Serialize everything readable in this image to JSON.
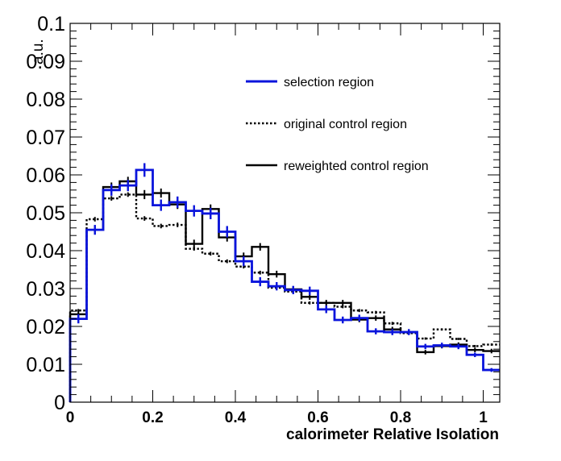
{
  "chart_data": {
    "type": "line",
    "title": "",
    "xlabel": "calorimeter Relative Isolation",
    "ylabel": "a.u.",
    "xlim": [
      0,
      1.04
    ],
    "ylim": [
      0,
      0.1
    ],
    "x_ticks": [
      "0",
      "0.2",
      "0.4",
      "0.6",
      "0.8",
      "1"
    ],
    "y_ticks": [
      "0",
      "0.01",
      "0.02",
      "0.03",
      "0.04",
      "0.05",
      "0.06",
      "0.07",
      "0.08",
      "0.09",
      "0.1"
    ],
    "bin_edges": [
      0,
      0.04,
      0.08,
      0.12,
      0.16,
      0.2,
      0.24,
      0.28,
      0.32,
      0.36,
      0.4,
      0.44,
      0.48,
      0.52,
      0.56,
      0.6,
      0.64,
      0.68,
      0.72,
      0.76,
      0.8,
      0.84,
      0.88,
      0.92,
      0.96,
      1.0,
      1.04
    ],
    "legend_position": "top-right",
    "grid": false,
    "series": [
      {
        "name": "selection region",
        "style": "solid",
        "color": "#0a14dc",
        "values": [
          0.022,
          0.0455,
          0.056,
          0.0572,
          0.0613,
          0.052,
          0.0528,
          0.0505,
          0.0498,
          0.045,
          0.0372,
          0.0318,
          0.0306,
          0.0296,
          0.0294,
          0.0245,
          0.0217,
          0.0222,
          0.0187,
          0.0185,
          0.0185,
          0.0147,
          0.015,
          0.0147,
          0.0125,
          0.0085
        ],
        "errors": [
          0.0012,
          0.0013,
          0.0015,
          0.0015,
          0.0018,
          0.0015,
          0.0015,
          0.0015,
          0.0015,
          0.0015,
          0.0013,
          0.0012,
          0.0011,
          0.0011,
          0.0011,
          0.001,
          0.0009,
          0.0009,
          0.0008,
          0.0008,
          0.0008,
          0.0007,
          0.0007,
          0.0007,
          0.0006,
          0.0005
        ]
      },
      {
        "name": "original control region",
        "style": "dotted",
        "color": "#000000",
        "values": [
          0.0242,
          0.0483,
          0.0538,
          0.0548,
          0.0485,
          0.0465,
          0.0468,
          0.0405,
          0.0392,
          0.0372,
          0.0358,
          0.0342,
          0.0302,
          0.0292,
          0.0262,
          0.0262,
          0.0252,
          0.0242,
          0.0237,
          0.0208,
          0.0182,
          0.0168,
          0.0192,
          0.0167,
          0.0148,
          0.0152
        ],
        "errors": [
          0.0004,
          0.0006,
          0.0006,
          0.0006,
          0.0006,
          0.0006,
          0.0006,
          0.0005,
          0.0005,
          0.0005,
          0.0005,
          0.0005,
          0.0004,
          0.0004,
          0.0004,
          0.0004,
          0.0004,
          0.0004,
          0.0004,
          0.0004,
          0.0003,
          0.0003,
          0.0003,
          0.0003,
          0.0003,
          0.0003
        ]
      },
      {
        "name": "reweighted control region",
        "style": "solid",
        "color": "#000000",
        "values": [
          0.0232,
          0.0455,
          0.0568,
          0.0583,
          0.0548,
          0.0552,
          0.0522,
          0.0418,
          0.051,
          0.0435,
          0.0385,
          0.041,
          0.0338,
          0.0298,
          0.0278,
          0.0262,
          0.0262,
          0.0218,
          0.0222,
          0.0192,
          0.0185,
          0.0132,
          0.0148,
          0.0152,
          0.0138,
          0.0135
        ],
        "errors": [
          0.0008,
          0.0011,
          0.0012,
          0.0012,
          0.0012,
          0.0012,
          0.0012,
          0.0011,
          0.0012,
          0.0011,
          0.001,
          0.001,
          0.0009,
          0.0008,
          0.0008,
          0.0008,
          0.0008,
          0.0007,
          0.0007,
          0.0007,
          0.0006,
          0.0006,
          0.0006,
          0.0006,
          0.0006,
          0.0006
        ]
      }
    ]
  }
}
